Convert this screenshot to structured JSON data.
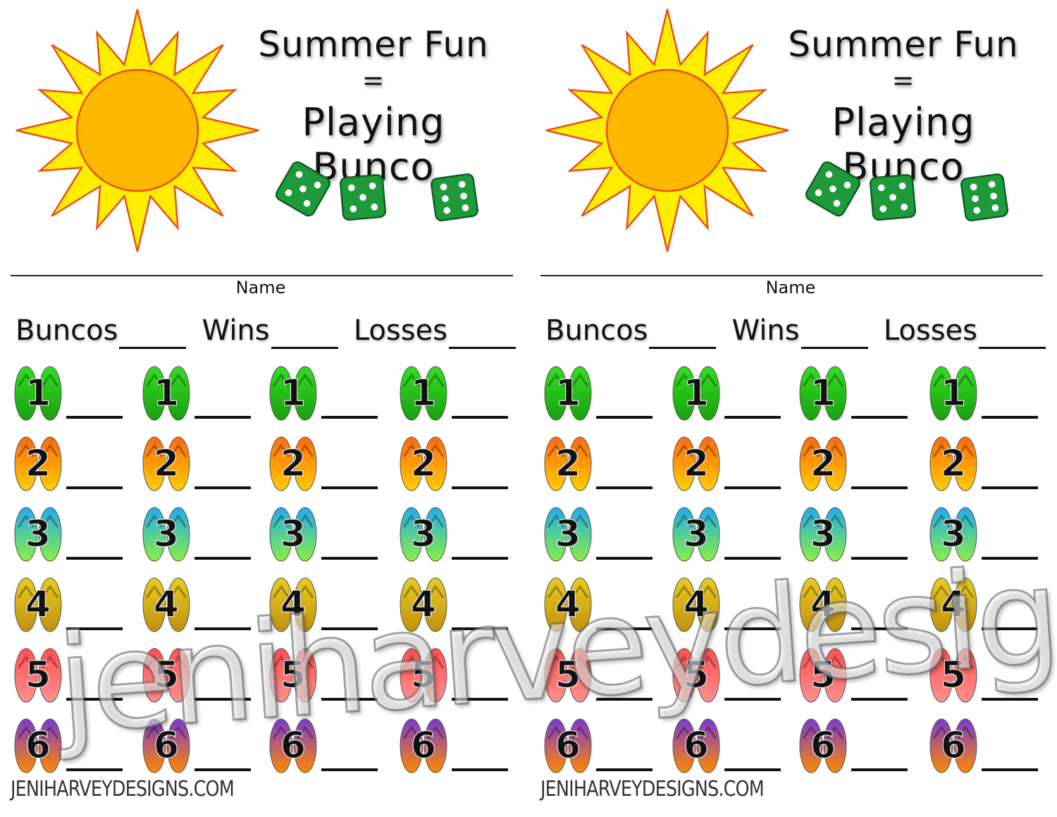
{
  "cards": [
    {
      "title_line1": "Summer Fun",
      "title_equals": "=",
      "title_line2": "Playing Bunco",
      "name_label": "Name",
      "stats": [
        {
          "label": "Buncos"
        },
        {
          "label": "Wins"
        },
        {
          "label": "Losses"
        }
      ],
      "rounds": [
        "1",
        "2",
        "3",
        "4",
        "5",
        "6"
      ],
      "columns": 4,
      "footer": "JENIHARVEYDESIGNS.COM"
    },
    {
      "title_line1": "Summer Fun",
      "title_equals": "=",
      "title_line2": "Playing Bunco",
      "name_label": "Name",
      "stats": [
        {
          "label": "Buncos"
        },
        {
          "label": "Wins"
        },
        {
          "label": "Losses"
        }
      ],
      "rounds": [
        "1",
        "2",
        "3",
        "4",
        "5",
        "6"
      ],
      "columns": 4,
      "footer": "JENIHARVEYDESIGNS.COM"
    }
  ],
  "watermark": "jeniharveydesigns.com",
  "icons": {
    "sun": "sun-icon",
    "dice": "green-dice-icon",
    "round_marker": "flip-flops-icon"
  },
  "colors": {
    "sun_core": "#ffb800",
    "sun_rays": "#ffee00",
    "sun_outline": "#e8501a",
    "dice": "#1f9a3a",
    "round_flipflops": [
      "#33dd22",
      "#ff6a10",
      "#22aaee",
      "#e8cc20",
      "#ff5050",
      "#7a3ad0"
    ]
  }
}
